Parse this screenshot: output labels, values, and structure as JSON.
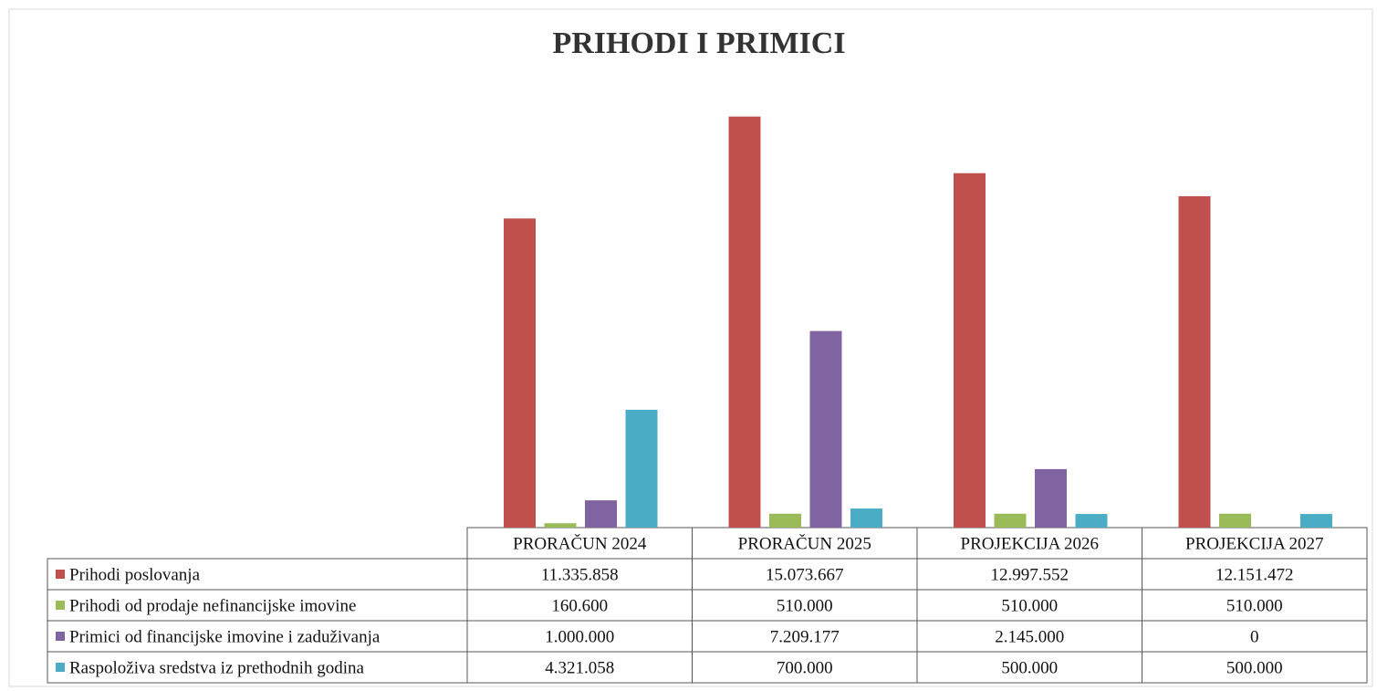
{
  "chart_data": {
    "type": "bar",
    "title": "PRIHODI I PRIMICI",
    "categories": [
      "PRORAČUN 2024",
      "PRORAČUN 2025",
      "PROJEKCIJA 2026",
      "PROJEKCIJA 2027"
    ],
    "ylim": [
      0,
      16000000
    ],
    "series": [
      {
        "name": "Prihodi poslovanja",
        "color": "#c0504d",
        "values": [
          11335858,
          15073667,
          12997552,
          12151472
        ],
        "value_labels": [
          "11.335.858",
          "15.073.667",
          "12.997.552",
          "12.151.472"
        ]
      },
      {
        "name": "Prihodi od prodaje nefinancijske imovine",
        "color": "#9bbb59",
        "values": [
          160600,
          510000,
          510000,
          510000
        ],
        "value_labels": [
          "160.600",
          "510.000",
          "510.000",
          "510.000"
        ]
      },
      {
        "name": "Primici od financijske imovine i zaduživanja",
        "color": "#8064a2",
        "values": [
          1000000,
          7209177,
          2145000,
          0
        ],
        "value_labels": [
          "1.000.000",
          "7.209.177",
          "2.145.000",
          "0"
        ]
      },
      {
        "name": "Raspoloživa sredstva iz prethodnih godina",
        "color": "#4bacc6",
        "values": [
          4321058,
          700000,
          500000,
          500000
        ],
        "value_labels": [
          "4.321.058",
          "700.000",
          "500.000",
          "500.000"
        ]
      }
    ]
  }
}
